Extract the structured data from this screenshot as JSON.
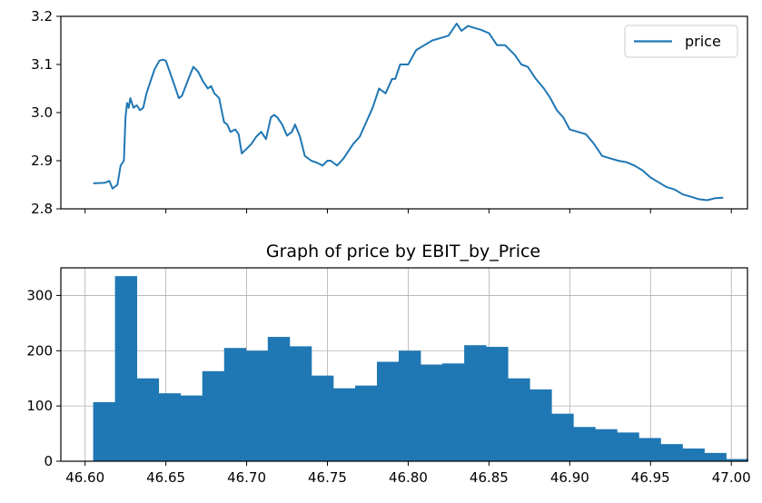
{
  "chart_data": [
    {
      "type": "line",
      "title": "",
      "xlabel": "",
      "ylabel": "",
      "xlim": [
        46.585,
        47.01
      ],
      "ylim": [
        2.8,
        3.2
      ],
      "yticks": [
        2.8,
        2.9,
        3.0,
        3.1,
        3.2
      ],
      "ytick_labels": [
        "2.8",
        "2.9",
        "3.0",
        "3.1",
        "3.2"
      ],
      "xticks": [
        46.6,
        46.65,
        46.7,
        46.75,
        46.8,
        46.85,
        46.9,
        46.95,
        47.0
      ],
      "show_xtick_labels": false,
      "grid": false,
      "legend": "top-right",
      "color": "#1f77b4",
      "series": [
        {
          "name": "price",
          "x": [
            46.605,
            46.612,
            46.615,
            46.617,
            46.62,
            46.622,
            46.624,
            46.625,
            46.626,
            46.627,
            46.628,
            46.63,
            46.632,
            46.634,
            46.636,
            46.638,
            46.64,
            46.643,
            46.646,
            46.648,
            46.65,
            46.655,
            46.658,
            46.66,
            46.664,
            46.667,
            46.67,
            46.673,
            46.676,
            46.678,
            46.68,
            46.683,
            46.686,
            46.688,
            46.69,
            46.693,
            46.695,
            46.697,
            46.7,
            46.703,
            46.706,
            46.709,
            46.712,
            46.715,
            46.717,
            46.719,
            46.722,
            46.725,
            46.728,
            46.73,
            46.733,
            46.736,
            46.74,
            46.744,
            46.747,
            46.75,
            46.752,
            46.756,
            46.76,
            46.763,
            46.766,
            46.77,
            46.774,
            46.778,
            46.782,
            46.786,
            46.79,
            46.792,
            46.795,
            46.8,
            46.805,
            46.81,
            46.815,
            46.82,
            46.825,
            46.83,
            46.833,
            46.837,
            46.842,
            46.845,
            46.85,
            46.855,
            46.86,
            46.866,
            46.87,
            46.874,
            46.879,
            46.884,
            46.888,
            46.892,
            46.896,
            46.9,
            46.905,
            46.91,
            46.915,
            46.92,
            46.925,
            46.93,
            46.935,
            46.94,
            46.945,
            46.95,
            46.955,
            46.96,
            46.965,
            46.97,
            46.975,
            46.98,
            46.985,
            46.99,
            46.995
          ],
          "y": [
            2.853,
            2.854,
            2.858,
            2.842,
            2.85,
            2.89,
            2.9,
            2.99,
            3.02,
            3.01,
            3.03,
            3.01,
            3.015,
            3.005,
            3.01,
            3.04,
            3.06,
            3.09,
            3.108,
            3.11,
            3.108,
            3.06,
            3.03,
            3.035,
            3.07,
            3.095,
            3.085,
            3.065,
            3.05,
            3.055,
            3.04,
            3.03,
            2.98,
            2.975,
            2.96,
            2.965,
            2.955,
            2.915,
            2.925,
            2.935,
            2.95,
            2.96,
            2.945,
            2.99,
            2.995,
            2.99,
            2.975,
            2.952,
            2.96,
            2.975,
            2.95,
            2.91,
            2.9,
            2.895,
            2.89,
            2.9,
            2.9,
            2.89,
            2.905,
            2.92,
            2.935,
            2.95,
            2.98,
            3.01,
            3.05,
            3.04,
            3.07,
            3.07,
            3.1,
            3.1,
            3.13,
            3.14,
            3.15,
            3.155,
            3.16,
            3.185,
            3.17,
            3.18,
            3.175,
            3.172,
            3.165,
            3.14,
            3.14,
            3.12,
            3.1,
            3.095,
            3.07,
            3.05,
            3.03,
            3.005,
            2.99,
            2.965,
            2.96,
            2.955,
            2.935,
            2.91,
            2.905,
            2.9,
            2.897,
            2.89,
            2.88,
            2.865,
            2.855,
            2.845,
            2.84,
            2.83,
            2.825,
            2.82,
            2.818,
            2.822,
            2.823
          ]
        }
      ]
    },
    {
      "type": "bar",
      "title": "Graph of price by EBIT_by_Price",
      "xlabel": "",
      "ylabel": "",
      "xlim": [
        46.585,
        47.01
      ],
      "ylim": [
        0,
        350
      ],
      "yticks": [
        0,
        100,
        200,
        300
      ],
      "ytick_labels": [
        "0",
        "100",
        "200",
        "300"
      ],
      "xticks": [
        46.6,
        46.65,
        46.7,
        46.75,
        46.8,
        46.85,
        46.9,
        46.95,
        47.0
      ],
      "xtick_labels": [
        "46.60",
        "46.65",
        "46.70",
        "46.75",
        "46.80",
        "46.85",
        "46.90",
        "46.95",
        "47.00"
      ],
      "grid": true,
      "legend": "none",
      "color": "#1f77b4",
      "bin_start": 46.605,
      "bin_width": 0.01351,
      "values": [
        107,
        335,
        150,
        123,
        119,
        163,
        205,
        200,
        225,
        208,
        155,
        132,
        137,
        180,
        200,
        175,
        177,
        210,
        207,
        150,
        130,
        86,
        62,
        58,
        52,
        42,
        31,
        23,
        15,
        4
      ]
    }
  ]
}
